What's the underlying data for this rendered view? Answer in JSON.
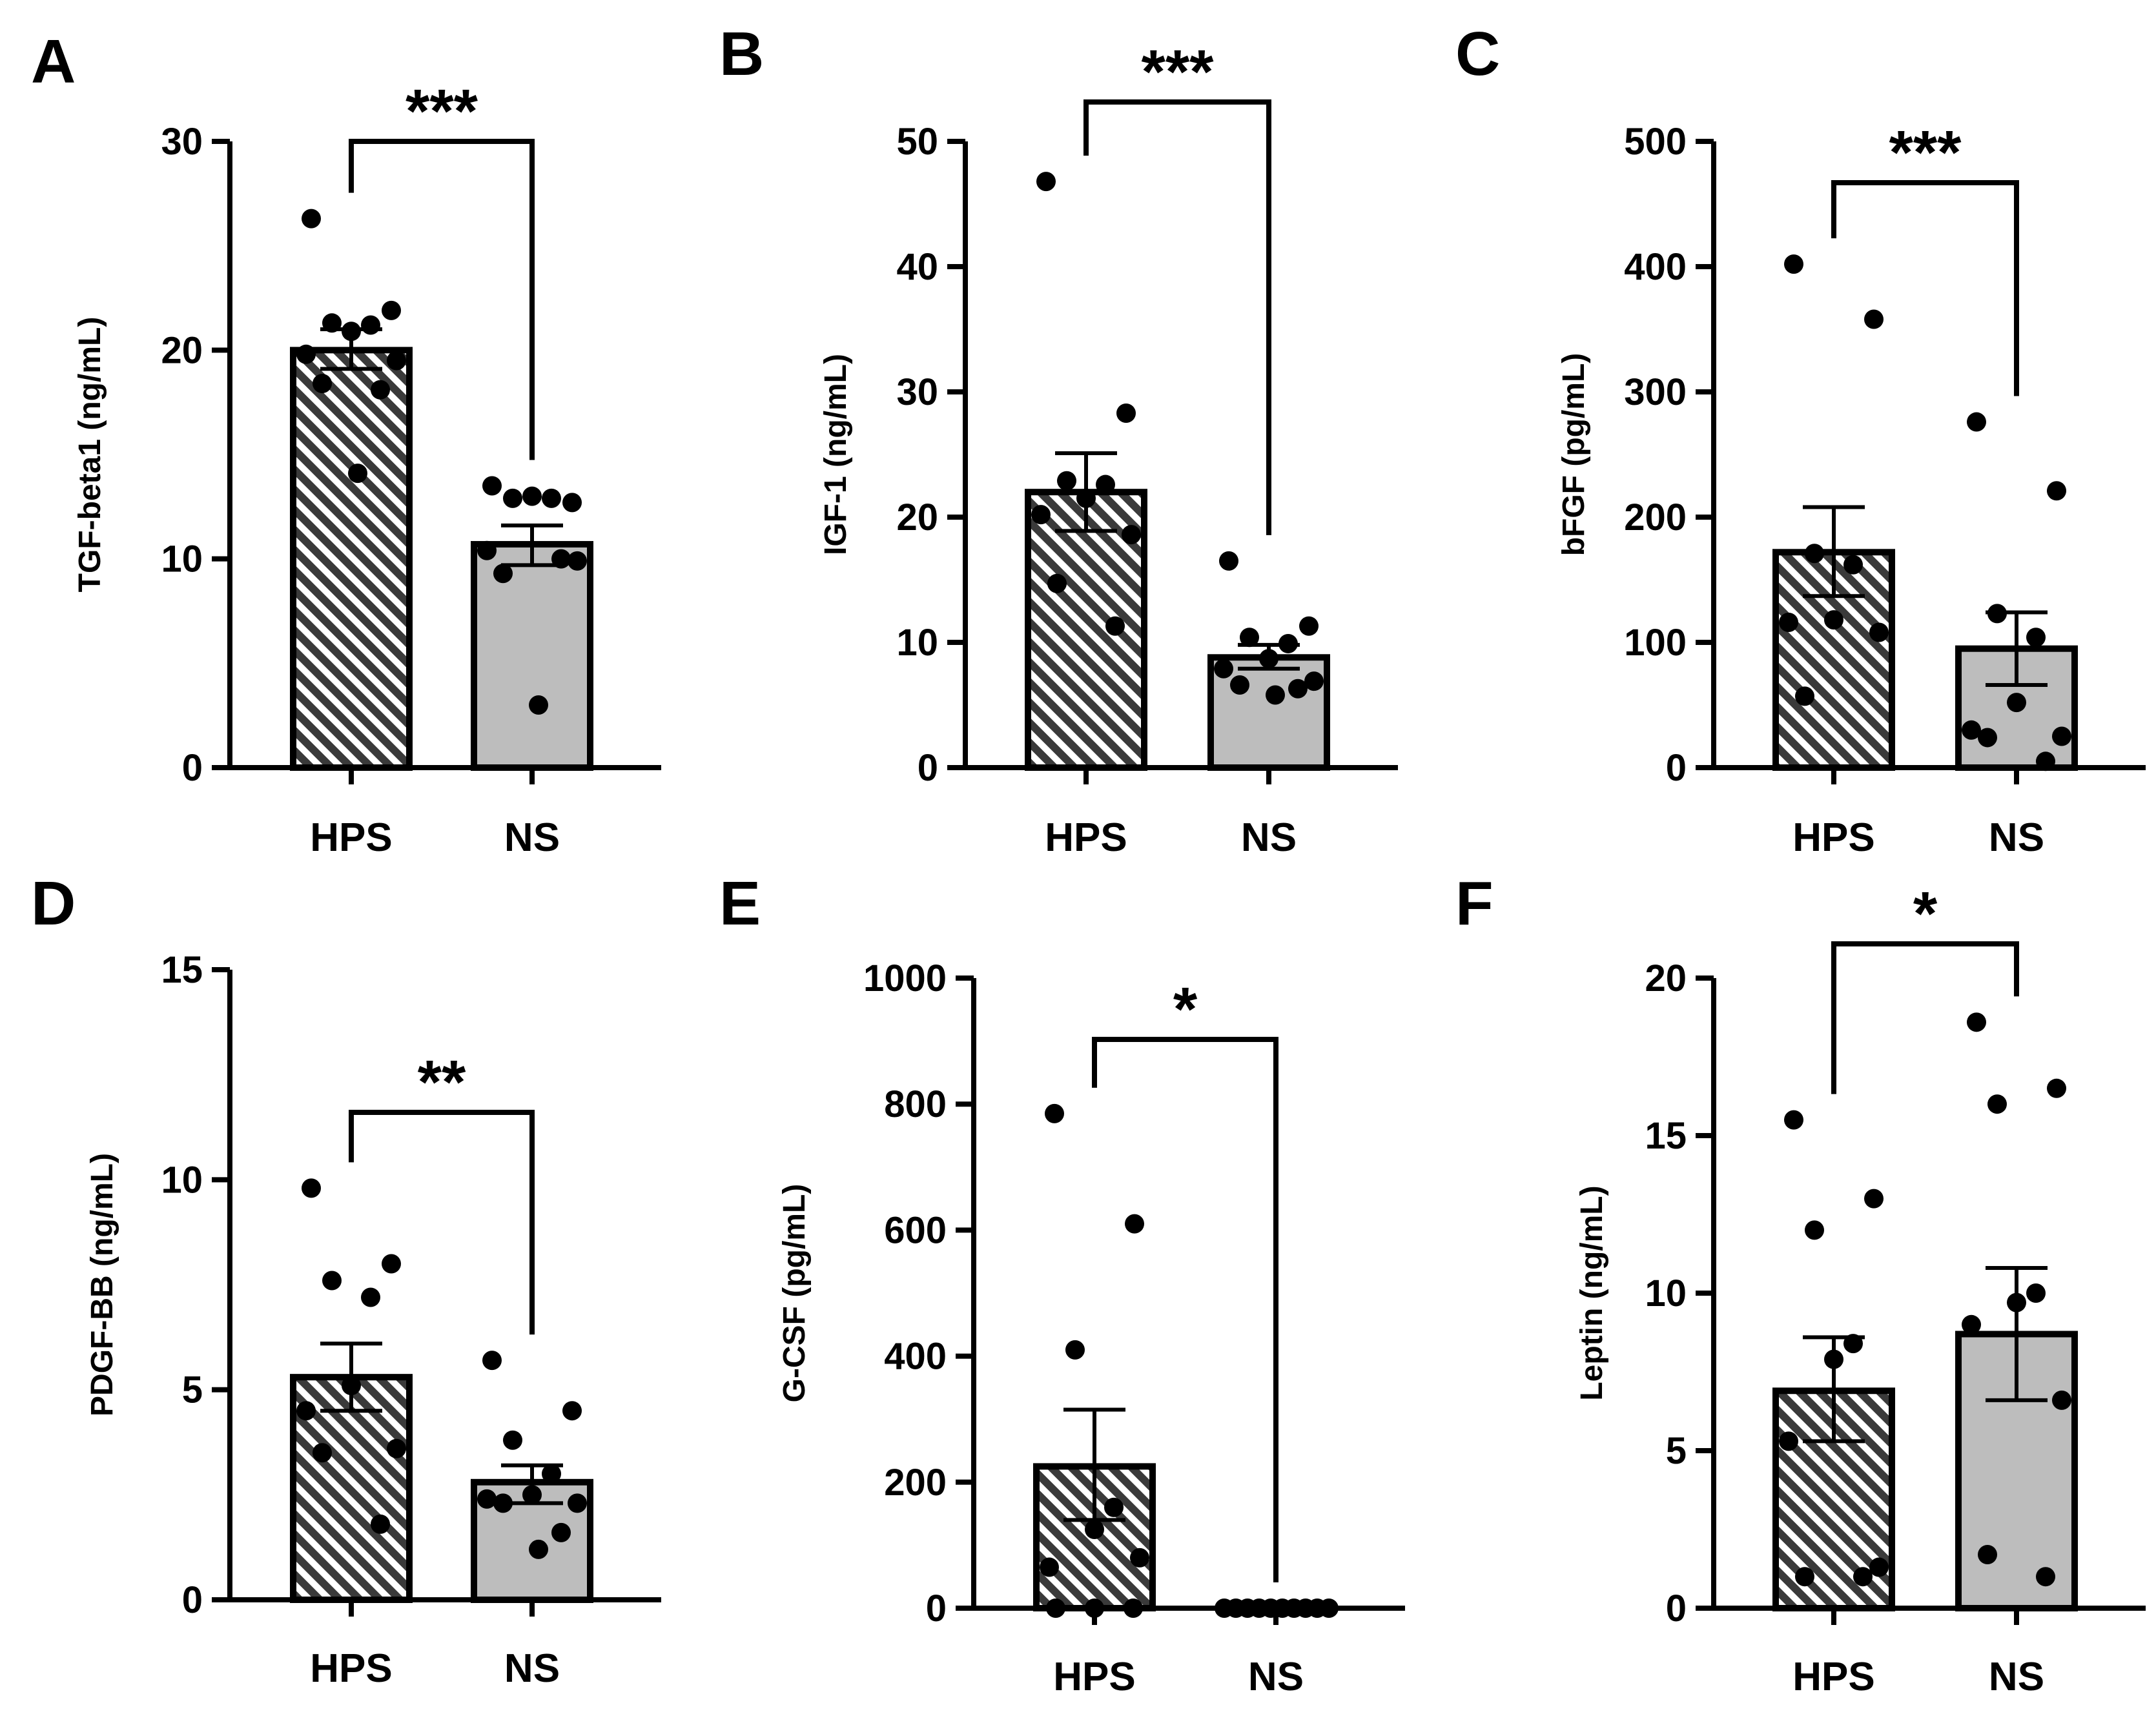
{
  "colors": {
    "hps_fill": "#3a3a3a",
    "ns_fill": "#bdbdbd",
    "ink": "#000000"
  },
  "chart_data": [
    {
      "panel": "A",
      "type": "bar",
      "ylabel": "TGF-beta1 (ng/mL)",
      "ylim": [
        0,
        30
      ],
      "ticks": [
        0,
        10,
        20,
        30
      ],
      "categories": [
        "HPS",
        "NS"
      ],
      "significance": "***",
      "groups": [
        {
          "name": "HPS",
          "pattern": "hatched",
          "mean": 20.0,
          "err_low": 19.1,
          "err_high": 21.0,
          "points": [
            26.3,
            21.9,
            21.3,
            21.2,
            20.9,
            19.8,
            19.5,
            18.4,
            18.1,
            14.1
          ]
        },
        {
          "name": "NS",
          "pattern": "solid",
          "mean": 10.7,
          "err_low": 9.7,
          "err_high": 11.6,
          "points": [
            13.5,
            12.7,
            12.9,
            12.9,
            13.0,
            10.4,
            9.9,
            9.3,
            10.0,
            3.0
          ]
        }
      ]
    },
    {
      "panel": "B",
      "type": "bar",
      "ylabel": "IGF-1 (ng/mL)",
      "ylim": [
        0,
        50
      ],
      "ticks": [
        0,
        10,
        20,
        30,
        40,
        50
      ],
      "categories": [
        "HPS",
        "NS"
      ],
      "significance": "***",
      "groups": [
        {
          "name": "HPS",
          "pattern": "hatched",
          "mean": 22.0,
          "err_low": 18.9,
          "err_high": 25.1,
          "points": [
            46.8,
            28.3,
            22.9,
            22.6,
            21.5,
            20.2,
            18.6,
            14.7,
            11.3
          ]
        },
        {
          "name": "NS",
          "pattern": "solid",
          "mean": 8.8,
          "err_low": 7.9,
          "err_high": 9.8,
          "points": [
            16.5,
            11.3,
            10.4,
            9.9,
            8.7,
            7.9,
            6.9,
            6.6,
            6.3,
            5.8
          ]
        }
      ]
    },
    {
      "panel": "C",
      "type": "bar",
      "ylabel": "bFGF (pg/mL)",
      "ylim": [
        0,
        500
      ],
      "ticks": [
        0,
        100,
        200,
        300,
        400,
        500
      ],
      "categories": [
        "HPS",
        "NS"
      ],
      "significance": "***",
      "groups": [
        {
          "name": "HPS",
          "pattern": "hatched",
          "mean": 172,
          "err_low": 137,
          "err_high": 208,
          "points": [
            402,
            358,
            171,
            162,
            118,
            116,
            108,
            57
          ]
        },
        {
          "name": "NS",
          "pattern": "solid",
          "mean": 95,
          "err_low": 66,
          "err_high": 124,
          "points": [
            276,
            221,
            123,
            104,
            52,
            30,
            25,
            24,
            5
          ]
        }
      ]
    },
    {
      "panel": "D",
      "type": "bar",
      "ylabel": "PDGF-BB (ng/mL)",
      "ylim": [
        0,
        15
      ],
      "ticks": [
        0,
        5,
        10,
        15
      ],
      "categories": [
        "HPS",
        "NS"
      ],
      "significance": "**",
      "groups": [
        {
          "name": "HPS",
          "pattern": "hatched",
          "mean": 5.3,
          "err_low": 4.5,
          "err_high": 6.1,
          "points": [
            9.8,
            8.0,
            7.6,
            7.2,
            5.1,
            4.5,
            3.6,
            3.5,
            1.8
          ]
        },
        {
          "name": "NS",
          "pattern": "solid",
          "mean": 2.8,
          "err_low": 2.3,
          "err_high": 3.2,
          "points": [
            5.7,
            4.5,
            3.8,
            3.0,
            2.5,
            2.4,
            2.3,
            2.3,
            1.6,
            1.2
          ]
        }
      ]
    },
    {
      "panel": "E",
      "type": "bar",
      "ylabel": "G-CSF (pg/mL)",
      "ylim": [
        0,
        1000
      ],
      "ticks": [
        0,
        200,
        400,
        600,
        800,
        1000
      ],
      "categories": [
        "HPS",
        "NS"
      ],
      "significance": "*",
      "groups": [
        {
          "name": "HPS",
          "pattern": "hatched",
          "mean": 225,
          "err_low": 140,
          "err_high": 315,
          "points": [
            785,
            610,
            410,
            160,
            125,
            65,
            80,
            0,
            0,
            0
          ]
        },
        {
          "name": "NS",
          "pattern": "solid",
          "mean": 0,
          "err_low": 0,
          "err_high": 0,
          "points": [
            0,
            0,
            0,
            0,
            0,
            0,
            0,
            0,
            0,
            0
          ]
        }
      ]
    },
    {
      "panel": "F",
      "type": "bar",
      "ylabel": "Leptin (ng/mL)",
      "ylim": [
        0,
        20
      ],
      "ticks": [
        0,
        5,
        10,
        15,
        20
      ],
      "categories": [
        "HPS",
        "NS"
      ],
      "significance": "*",
      "groups": [
        {
          "name": "HPS",
          "pattern": "hatched",
          "mean": 6.9,
          "err_low": 5.3,
          "err_high": 8.6,
          "points": [
            15.5,
            13.0,
            12.0,
            8.4,
            7.9,
            5.3,
            1.3,
            1.0,
            1.0
          ]
        },
        {
          "name": "NS",
          "pattern": "solid",
          "mean": 8.7,
          "err_low": 6.6,
          "err_high": 10.8,
          "points": [
            18.6,
            16.5,
            16.0,
            10.0,
            9.7,
            9.0,
            6.6,
            1.7,
            1.0
          ]
        }
      ]
    }
  ]
}
